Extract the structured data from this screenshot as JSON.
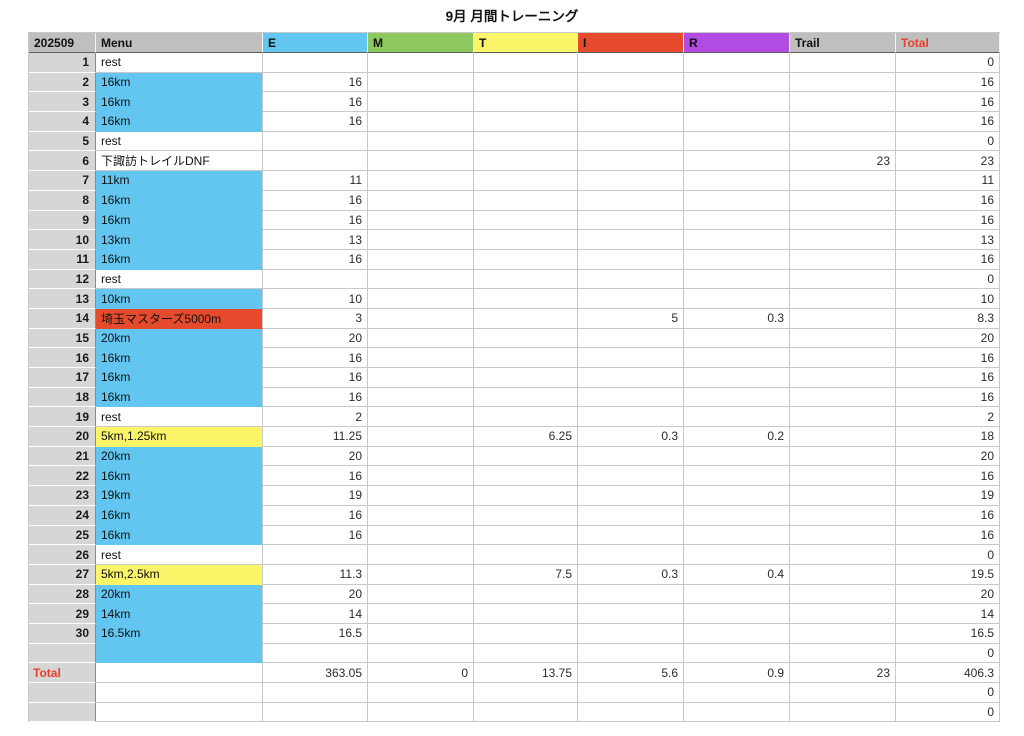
{
  "title": "9月 月間トレーニング",
  "colors": {
    "cyan": "#63c6f0",
    "green": "#90c860",
    "yellow": "#fbf569",
    "red": "#e54a2d",
    "purple": "#b24be2",
    "header_gray": "#bfbfbf",
    "day_gray": "#d6d6d6",
    "menu_gray": "#c6c6c6",
    "red_text": "#e8402a"
  },
  "table": {
    "headers": [
      {
        "label": "202509",
        "bg": "header_gray"
      },
      {
        "label": "Menu",
        "bg": "header_gray"
      },
      {
        "label": "E",
        "bg": "cyan"
      },
      {
        "label": "M",
        "bg": "green"
      },
      {
        "label": "T",
        "bg": "yellow"
      },
      {
        "label": "I",
        "bg": "red"
      },
      {
        "label": "R",
        "bg": "purple"
      },
      {
        "label": "Trail",
        "bg": "header_gray"
      },
      {
        "label": "Total",
        "bg": "header_gray",
        "text_color": "red_text"
      }
    ],
    "rows": [
      {
        "day": "1",
        "menu": "rest",
        "menu_bg": "white",
        "e": "",
        "m": "",
        "t": "",
        "i": "",
        "r": "",
        "trail": "",
        "total": "0"
      },
      {
        "day": "2",
        "menu": "16km",
        "menu_bg": "cyan",
        "e": "16",
        "m": "",
        "t": "",
        "i": "",
        "r": "",
        "trail": "",
        "total": "16"
      },
      {
        "day": "3",
        "menu": "16km",
        "menu_bg": "cyan",
        "e": "16",
        "m": "",
        "t": "",
        "i": "",
        "r": "",
        "trail": "",
        "total": "16"
      },
      {
        "day": "4",
        "menu": "16km",
        "menu_bg": "cyan",
        "e": "16",
        "m": "",
        "t": "",
        "i": "",
        "r": "",
        "trail": "",
        "total": "16"
      },
      {
        "day": "5",
        "menu": "rest",
        "menu_bg": "white",
        "e": "",
        "m": "",
        "t": "",
        "i": "",
        "r": "",
        "trail": "",
        "total": "0"
      },
      {
        "day": "6",
        "menu": "下諏訪トレイルDNF",
        "menu_bg": "gray",
        "e": "",
        "m": "",
        "t": "",
        "i": "",
        "r": "",
        "trail": "23",
        "total": "23"
      },
      {
        "day": "7",
        "menu": "11km",
        "menu_bg": "cyan",
        "e": "11",
        "m": "",
        "t": "",
        "i": "",
        "r": "",
        "trail": "",
        "total": "11"
      },
      {
        "day": "8",
        "menu": "16km",
        "menu_bg": "cyan",
        "e": "16",
        "m": "",
        "t": "",
        "i": "",
        "r": "",
        "trail": "",
        "total": "16"
      },
      {
        "day": "9",
        "menu": "16km",
        "menu_bg": "cyan",
        "e": "16",
        "m": "",
        "t": "",
        "i": "",
        "r": "",
        "trail": "",
        "total": "16"
      },
      {
        "day": "10",
        "menu": "13km",
        "menu_bg": "cyan",
        "e": "13",
        "m": "",
        "t": "",
        "i": "",
        "r": "",
        "trail": "",
        "total": "13"
      },
      {
        "day": "11",
        "menu": "16km",
        "menu_bg": "cyan",
        "e": "16",
        "m": "",
        "t": "",
        "i": "",
        "r": "",
        "trail": "",
        "total": "16"
      },
      {
        "day": "12",
        "menu": "rest",
        "menu_bg": "white",
        "e": "",
        "m": "",
        "t": "",
        "i": "",
        "r": "",
        "trail": "",
        "total": "0"
      },
      {
        "day": "13",
        "menu": "10km",
        "menu_bg": "cyan",
        "e": "10",
        "m": "",
        "t": "",
        "i": "",
        "r": "",
        "trail": "",
        "total": "10"
      },
      {
        "day": "14",
        "menu": "埼玉マスターズ5000m",
        "menu_bg": "red",
        "e": "3",
        "m": "",
        "t": "",
        "i": "5",
        "r": "0.3",
        "trail": "",
        "total": "8.3"
      },
      {
        "day": "15",
        "menu": "20km",
        "menu_bg": "cyan",
        "e": "20",
        "m": "",
        "t": "",
        "i": "",
        "r": "",
        "trail": "",
        "total": "20"
      },
      {
        "day": "16",
        "menu": "16km",
        "menu_bg": "cyan",
        "e": "16",
        "m": "",
        "t": "",
        "i": "",
        "r": "",
        "trail": "",
        "total": "16"
      },
      {
        "day": "17",
        "menu": "16km",
        "menu_bg": "cyan",
        "e": "16",
        "m": "",
        "t": "",
        "i": "",
        "r": "",
        "trail": "",
        "total": "16"
      },
      {
        "day": "18",
        "menu": "16km",
        "menu_bg": "cyan",
        "e": "16",
        "m": "",
        "t": "",
        "i": "",
        "r": "",
        "trail": "",
        "total": "16"
      },
      {
        "day": "19",
        "menu": "rest",
        "menu_bg": "white",
        "e": "2",
        "m": "",
        "t": "",
        "i": "",
        "r": "",
        "trail": "",
        "total": "2"
      },
      {
        "day": "20",
        "menu": "5km,1.25km",
        "menu_bg": "yellow",
        "e": "11.25",
        "m": "",
        "t": "6.25",
        "i": "0.3",
        "r": "0.2",
        "trail": "",
        "total": "18"
      },
      {
        "day": "21",
        "menu": "20km",
        "menu_bg": "cyan",
        "e": "20",
        "m": "",
        "t": "",
        "i": "",
        "r": "",
        "trail": "",
        "total": "20"
      },
      {
        "day": "22",
        "menu": "16km",
        "menu_bg": "cyan",
        "e": "16",
        "m": "",
        "t": "",
        "i": "",
        "r": "",
        "trail": "",
        "total": "16"
      },
      {
        "day": "23",
        "menu": "19km",
        "menu_bg": "cyan",
        "e": "19",
        "m": "",
        "t": "",
        "i": "",
        "r": "",
        "trail": "",
        "total": "19"
      },
      {
        "day": "24",
        "menu": "16km",
        "menu_bg": "cyan",
        "e": "16",
        "m": "",
        "t": "",
        "i": "",
        "r": "",
        "trail": "",
        "total": "16"
      },
      {
        "day": "25",
        "menu": "16km",
        "menu_bg": "cyan",
        "e": "16",
        "m": "",
        "t": "",
        "i": "",
        "r": "",
        "trail": "",
        "total": "16"
      },
      {
        "day": "26",
        "menu": "rest",
        "menu_bg": "white",
        "e": "",
        "m": "",
        "t": "",
        "i": "",
        "r": "",
        "trail": "",
        "total": "0"
      },
      {
        "day": "27",
        "menu": "5km,2.5km",
        "menu_bg": "yellow",
        "e": "11.3",
        "m": "",
        "t": "7.5",
        "i": "0.3",
        "r": "0.4",
        "trail": "",
        "total": "19.5"
      },
      {
        "day": "28",
        "menu": "20km",
        "menu_bg": "cyan",
        "e": "20",
        "m": "",
        "t": "",
        "i": "",
        "r": "",
        "trail": "",
        "total": "20"
      },
      {
        "day": "29",
        "menu": "14km",
        "menu_bg": "cyan",
        "e": "14",
        "m": "",
        "t": "",
        "i": "",
        "r": "",
        "trail": "",
        "total": "14"
      },
      {
        "day": "30",
        "menu": "16.5km",
        "menu_bg": "cyan",
        "e": "16.5",
        "m": "",
        "t": "",
        "i": "",
        "r": "",
        "trail": "",
        "total": "16.5"
      },
      {
        "day": "",
        "menu": "",
        "menu_bg": "cyan",
        "e": "",
        "m": "",
        "t": "",
        "i": "",
        "r": "",
        "trail": "",
        "total": "0"
      }
    ],
    "total_row": {
      "label": "Total",
      "menu": "",
      "e": "363.05",
      "m": "0",
      "t": "13.75",
      "i": "5.6",
      "r": "0.9",
      "trail": "23",
      "total": "406.3"
    },
    "footer_rows": [
      {
        "day": "",
        "menu": "",
        "e": "",
        "m": "",
        "t": "",
        "i": "",
        "r": "",
        "trail": "",
        "total": "0"
      },
      {
        "day": "",
        "menu": "",
        "e": "",
        "m": "",
        "t": "",
        "i": "",
        "r": "",
        "trail": "",
        "total": "0"
      }
    ]
  }
}
